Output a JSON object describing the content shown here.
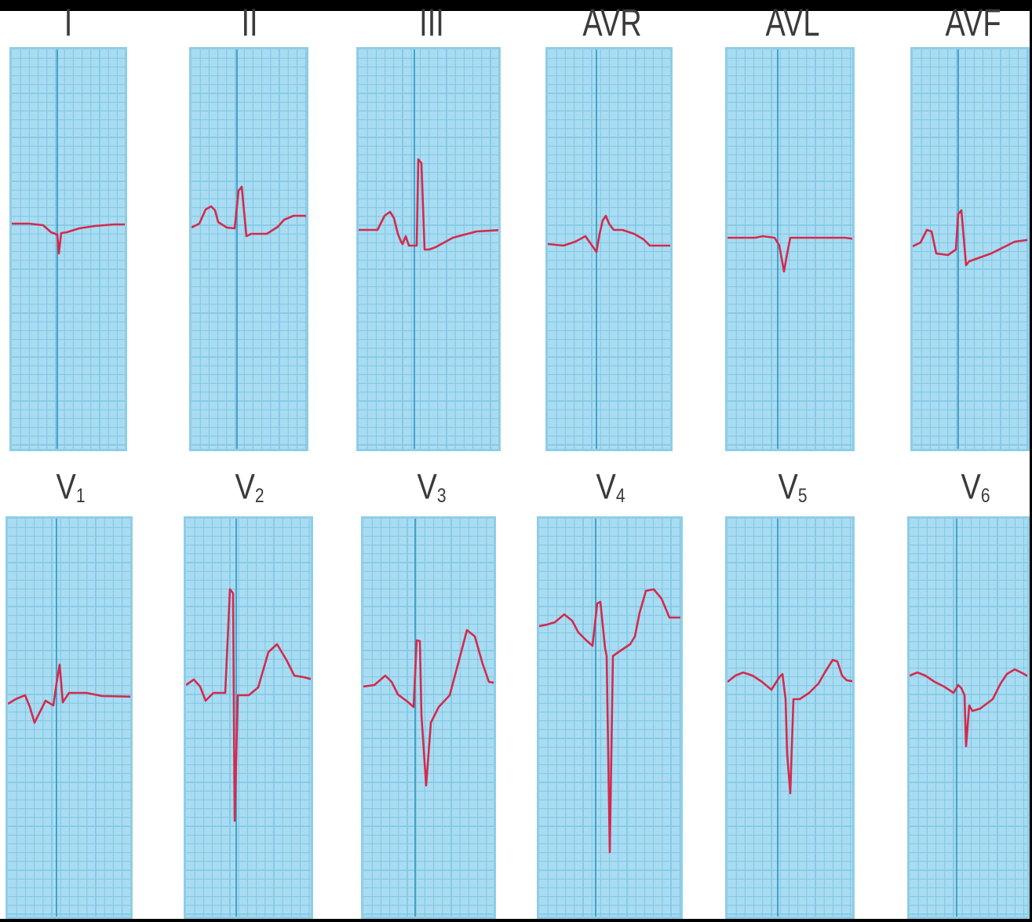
{
  "leads": [
    {
      "id": "I",
      "label": "I",
      "main": "",
      "sub": "",
      "row": 0
    },
    {
      "id": "II",
      "label": "II",
      "main": "",
      "sub": "",
      "row": 0
    },
    {
      "id": "III",
      "label": "III",
      "main": "",
      "sub": "",
      "row": 0
    },
    {
      "id": "AVR",
      "label": "AVR",
      "main": "",
      "sub": "",
      "row": 0
    },
    {
      "id": "AVL",
      "label": "AVL",
      "main": "",
      "sub": "",
      "row": 0
    },
    {
      "id": "AVF",
      "label": "AVF",
      "main": "",
      "sub": "",
      "row": 0
    },
    {
      "id": "V1",
      "label": "",
      "main": "V",
      "sub": "1",
      "row": 1
    },
    {
      "id": "V2",
      "label": "",
      "main": "V",
      "sub": "2",
      "row": 1
    },
    {
      "id": "V3",
      "label": "",
      "main": "V",
      "sub": "3",
      "row": 1
    },
    {
      "id": "V4",
      "label": "",
      "main": "V",
      "sub": "4",
      "row": 1
    },
    {
      "id": "V5",
      "label": "",
      "main": "V",
      "sub": "5",
      "row": 1
    },
    {
      "id": "V6",
      "label": "",
      "main": "V",
      "sub": "6",
      "row": 1
    }
  ],
  "colors": {
    "paper": "#a9dcf2",
    "grid_minor": "#7ec7e3",
    "grid_major": "#2f93bf",
    "trace": "#d42a4c",
    "label": "#3a3a3a"
  }
}
